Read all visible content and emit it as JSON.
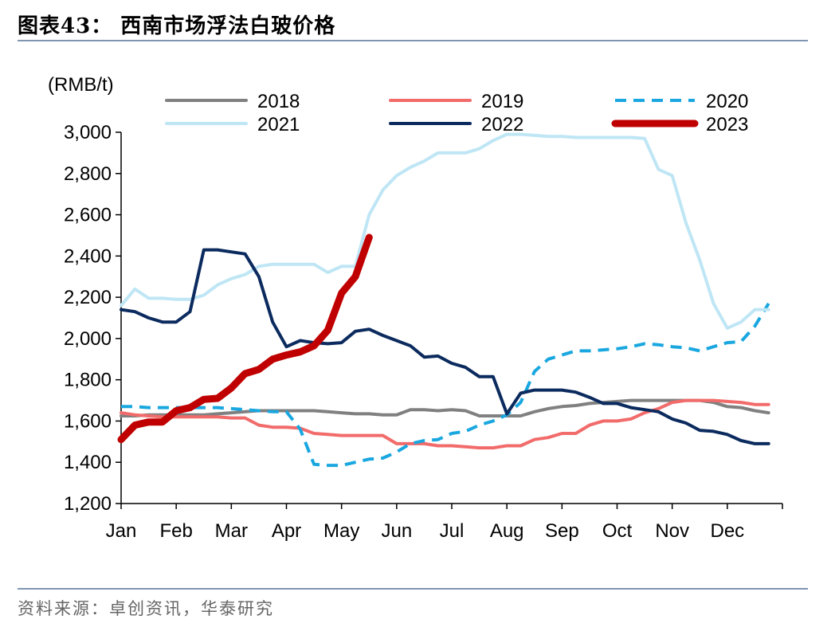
{
  "figure": {
    "title": "图表43：  西南市场浮法白玻价格",
    "source": "资料来源：卓创资讯，华泰研究"
  },
  "chart_data": {
    "type": "line",
    "unit_label": "(RMB/t)",
    "ylim": [
      1200,
      3000
    ],
    "yticks": [
      1200,
      1400,
      1600,
      1800,
      2000,
      2200,
      2400,
      2600,
      2800,
      3000
    ],
    "ytick_labels": [
      "1,200",
      "1,400",
      "1,600",
      "1,800",
      "2,000",
      "2,200",
      "2,400",
      "2,600",
      "2,800",
      "3,000"
    ],
    "x_domain": [
      1,
      13
    ],
    "months": [
      "Jan",
      "Feb",
      "Mar",
      "Apr",
      "May",
      "Jun",
      "Jul",
      "Aug",
      "Sep",
      "Oct",
      "Nov",
      "Dec"
    ],
    "legend_placement": "top",
    "grid": false,
    "series": [
      {
        "name": "2018",
        "color": "#808080",
        "style": "solid",
        "width": 4,
        "x": [
          1,
          1.25,
          1.5,
          1.75,
          2,
          2.25,
          2.5,
          2.75,
          3,
          3.25,
          3.5,
          3.75,
          4,
          4.25,
          4.5,
          4.75,
          5,
          5.25,
          5.5,
          5.75,
          6,
          6.25,
          6.5,
          6.75,
          7,
          7.25,
          7.5,
          7.75,
          8,
          8.25,
          8.5,
          8.75,
          9,
          9.25,
          9.5,
          9.75,
          10,
          10.25,
          10.5,
          10.75,
          11,
          11.25,
          11.5,
          11.75,
          12,
          12.25,
          12.5,
          12.75
        ],
        "values": [
          1625,
          1625,
          1630,
          1630,
          1630,
          1630,
          1630,
          1635,
          1640,
          1645,
          1650,
          1650,
          1650,
          1650,
          1650,
          1645,
          1640,
          1635,
          1635,
          1630,
          1630,
          1655,
          1655,
          1650,
          1655,
          1650,
          1625,
          1625,
          1625,
          1625,
          1645,
          1660,
          1670,
          1675,
          1685,
          1690,
          1695,
          1700,
          1700,
          1700,
          1700,
          1700,
          1700,
          1690,
          1670,
          1665,
          1650,
          1640
        ]
      },
      {
        "name": "2019",
        "color": "#f26b6b",
        "style": "solid",
        "width": 4,
        "x": [
          1,
          1.25,
          1.5,
          1.75,
          2,
          2.25,
          2.5,
          2.75,
          3,
          3.25,
          3.5,
          3.75,
          4,
          4.25,
          4.5,
          4.75,
          5,
          5.25,
          5.5,
          5.75,
          6,
          6.25,
          6.5,
          6.75,
          7,
          7.25,
          7.5,
          7.75,
          8,
          8.25,
          8.5,
          8.75,
          9,
          9.25,
          9.5,
          9.75,
          10,
          10.25,
          10.5,
          10.75,
          11,
          11.25,
          11.5,
          11.75,
          12,
          12.25,
          12.5,
          12.75
        ],
        "values": [
          1640,
          1630,
          1625,
          1620,
          1620,
          1620,
          1620,
          1620,
          1615,
          1615,
          1580,
          1570,
          1570,
          1565,
          1540,
          1535,
          1530,
          1530,
          1530,
          1530,
          1490,
          1490,
          1490,
          1480,
          1480,
          1475,
          1470,
          1470,
          1480,
          1480,
          1510,
          1520,
          1540,
          1540,
          1580,
          1600,
          1600,
          1610,
          1640,
          1660,
          1690,
          1700,
          1700,
          1700,
          1695,
          1690,
          1680,
          1680
        ]
      },
      {
        "name": "2020",
        "color": "#1aa7e0",
        "style": "dashed",
        "width": 4,
        "x": [
          1,
          1.25,
          1.5,
          1.75,
          2,
          2.25,
          2.5,
          2.75,
          3,
          3.25,
          3.5,
          3.75,
          4,
          4.25,
          4.5,
          4.75,
          5,
          5.25,
          5.5,
          5.75,
          6,
          6.25,
          6.5,
          6.75,
          7,
          7.25,
          7.5,
          7.75,
          8,
          8.25,
          8.5,
          8.75,
          9,
          9.25,
          9.5,
          9.75,
          10,
          10.25,
          10.5,
          10.75,
          11,
          11.25,
          11.5,
          11.75,
          12,
          12.25,
          12.5,
          12.75
        ],
        "values": [
          1670,
          1670,
          1665,
          1665,
          1665,
          1665,
          1665,
          1665,
          1660,
          1655,
          1650,
          1645,
          1645,
          1560,
          1390,
          1385,
          1385,
          1400,
          1415,
          1420,
          1450,
          1490,
          1505,
          1510,
          1540,
          1550,
          1580,
          1600,
          1630,
          1690,
          1840,
          1900,
          1920,
          1940,
          1940,
          1945,
          1950,
          1960,
          1975,
          1970,
          1960,
          1955,
          1940,
          1960,
          1980,
          1985,
          2060,
          2170
        ]
      },
      {
        "name": "2021",
        "color": "#bfe6f5",
        "style": "solid",
        "width": 4,
        "x": [
          1,
          1.25,
          1.5,
          1.75,
          2,
          2.25,
          2.5,
          2.75,
          3,
          3.25,
          3.5,
          3.75,
          4,
          4.25,
          4.5,
          4.75,
          5,
          5.25,
          5.5,
          5.75,
          6,
          6.25,
          6.5,
          6.75,
          7,
          7.25,
          7.5,
          7.75,
          8,
          8.25,
          8.5,
          8.75,
          9,
          9.25,
          9.5,
          9.75,
          10,
          10.25,
          10.5,
          10.75,
          11,
          11.25,
          11.5,
          11.75,
          12,
          12.25,
          12.5,
          12.75
        ],
        "values": [
          2160,
          2240,
          2195,
          2195,
          2190,
          2190,
          2210,
          2260,
          2290,
          2310,
          2350,
          2360,
          2360,
          2360,
          2360,
          2320,
          2350,
          2350,
          2600,
          2720,
          2790,
          2830,
          2860,
          2900,
          2900,
          2900,
          2920,
          2960,
          2990,
          2990,
          2985,
          2980,
          2980,
          2975,
          2975,
          2975,
          2975,
          2975,
          2970,
          2820,
          2790,
          2560,
          2380,
          2170,
          2050,
          2080,
          2140,
          2140
        ]
      },
      {
        "name": "2022",
        "color": "#0b2a5e",
        "style": "solid",
        "width": 4,
        "x": [
          1,
          1.25,
          1.5,
          1.75,
          2,
          2.25,
          2.5,
          2.75,
          3,
          3.25,
          3.5,
          3.75,
          4,
          4.25,
          4.5,
          4.75,
          5,
          5.25,
          5.5,
          5.75,
          6,
          6.25,
          6.5,
          6.75,
          7,
          7.25,
          7.5,
          7.75,
          8,
          8.25,
          8.5,
          8.75,
          9,
          9.25,
          9.5,
          9.75,
          10,
          10.25,
          10.5,
          10.75,
          11,
          11.25,
          11.5,
          11.75,
          12,
          12.25,
          12.5,
          12.75
        ],
        "values": [
          2140,
          2130,
          2100,
          2080,
          2080,
          2130,
          2430,
          2430,
          2420,
          2410,
          2300,
          2080,
          1960,
          1990,
          1980,
          1975,
          1980,
          2035,
          2045,
          2015,
          1990,
          1965,
          1910,
          1915,
          1880,
          1860,
          1815,
          1815,
          1635,
          1735,
          1750,
          1750,
          1750,
          1740,
          1715,
          1685,
          1685,
          1665,
          1655,
          1645,
          1610,
          1590,
          1555,
          1550,
          1535,
          1505,
          1490,
          1490
        ]
      },
      {
        "name": "2023",
        "color": "#c00000",
        "style": "solid",
        "width": 9,
        "x": [
          1,
          1.25,
          1.5,
          1.75,
          2,
          2.25,
          2.5,
          2.75,
          3,
          3.25,
          3.5,
          3.75,
          4,
          4.25,
          4.5,
          4.75,
          5,
          5.25,
          5.5
        ],
        "values": [
          1510,
          1580,
          1595,
          1595,
          1650,
          1665,
          1705,
          1710,
          1760,
          1830,
          1850,
          1900,
          1920,
          1935,
          1965,
          2040,
          2220,
          2300,
          2490
        ]
      }
    ]
  }
}
